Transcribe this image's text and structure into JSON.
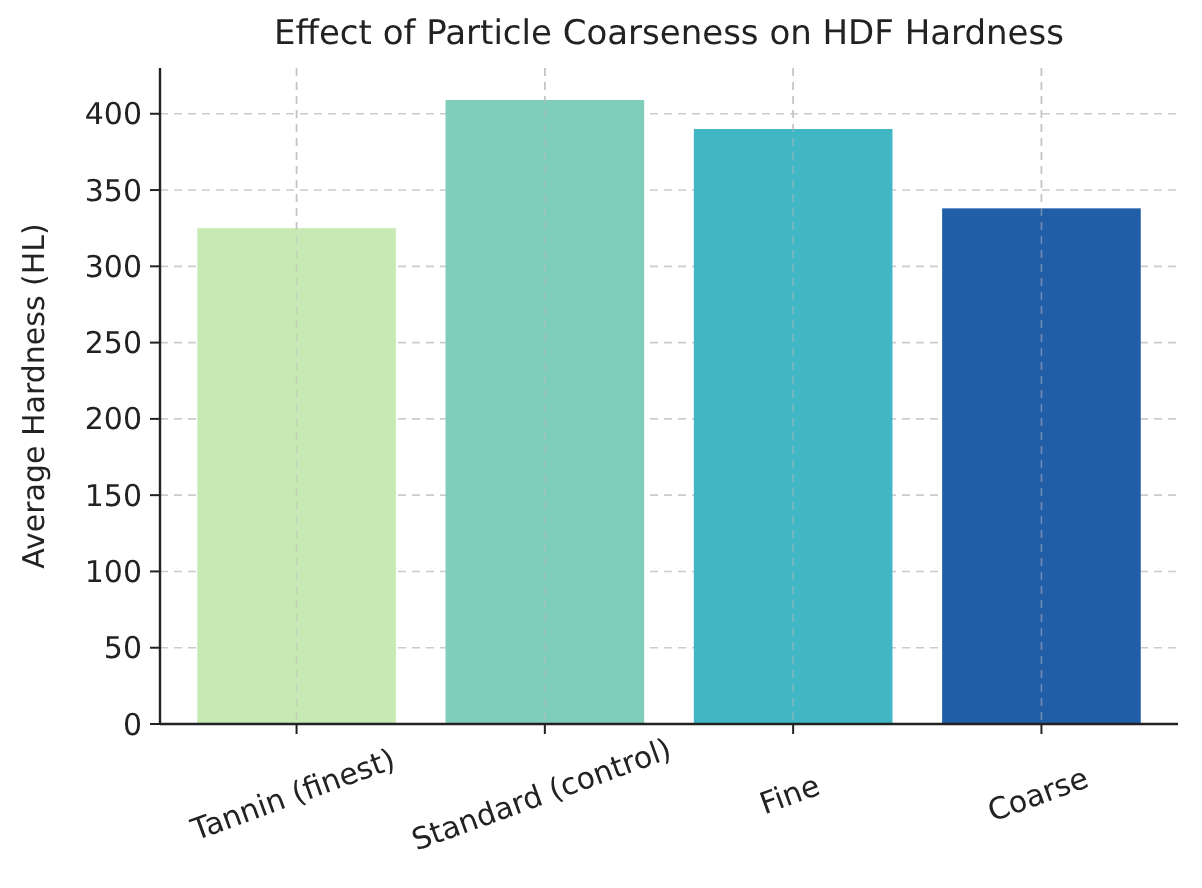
{
  "chart_data": {
    "type": "bar",
    "title": "Effect of Particle Coarseness on HDF Hardness",
    "ylabel": "Average Hardness (HL)",
    "categories": [
      "Tannin (finest)",
      "Standard (control)",
      "Fine",
      "Coarse"
    ],
    "values": [
      325,
      409,
      390,
      338
    ],
    "colors": [
      "#c7e9b4",
      "#7fcdbb",
      "#41b6c4",
      "#225ea8"
    ],
    "ylim": [
      0,
      430
    ],
    "yticks": [
      0,
      50,
      100,
      150,
      200,
      250,
      300,
      350,
      400
    ],
    "grid": true
  }
}
